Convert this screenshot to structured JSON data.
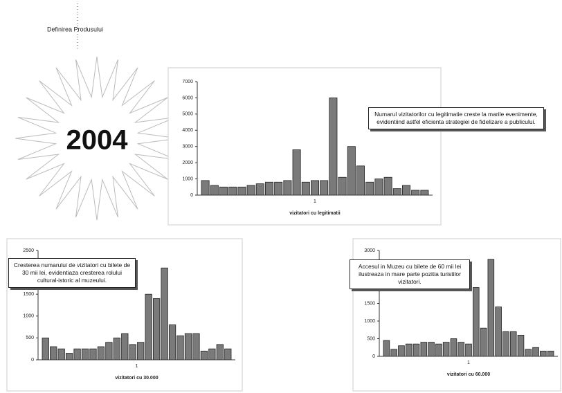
{
  "header": {
    "title": "Definirea Produsului",
    "year": "2004"
  },
  "chart_data": [
    {
      "type": "bar",
      "color": "#7a7a7a",
      "x_tick_label": "1",
      "xlabel": "vizitatori cu legitimatii",
      "annotation": "Numarul vizitatorilor cu legitimatie creste la marile evenimente, evidentiind astfel eficienta strategiei de fidelizare a publicului.",
      "ylim": [
        0,
        7000
      ],
      "yticks": [
        0,
        1000,
        2000,
        3000,
        4000,
        5000,
        6000,
        7000
      ],
      "values": [
        900,
        600,
        500,
        500,
        500,
        600,
        700,
        800,
        800,
        900,
        2800,
        800,
        900,
        900,
        6000,
        1100,
        3000,
        1800,
        800,
        1000,
        1100,
        400,
        600,
        300,
        300
      ]
    },
    {
      "type": "bar",
      "color": "#7a7a7a",
      "x_tick_label": "1",
      "xlabel": "vizitatori cu 30.000",
      "annotation": "Cresterea numarului de vizitatori cu bilete de 30 mii lei, evidentiaza cresterea rolului cultural-istoric al muzeului.",
      "ylim": [
        0,
        2500
      ],
      "yticks": [
        0,
        500,
        1000,
        1500,
        2000,
        2500
      ],
      "values": [
        500,
        300,
        250,
        150,
        250,
        250,
        250,
        300,
        400,
        500,
        600,
        350,
        400,
        1500,
        1400,
        2100,
        800,
        550,
        600,
        600,
        200,
        250,
        350,
        250
      ]
    },
    {
      "type": "bar",
      "color": "#7a7a7a",
      "x_tick_label": "1",
      "xlabel": "vizitatori cu 60.000",
      "annotation": "Accesul in Muzeu cu bilete de 60 mii lei ilustreaza in mare parte pozitia turistilor vizitatori.",
      "ylim": [
        0,
        3000
      ],
      "yticks": [
        0,
        500,
        1000,
        1500,
        2000,
        2500,
        3000
      ],
      "values": [
        450,
        200,
        300,
        350,
        350,
        400,
        400,
        350,
        400,
        500,
        400,
        350,
        1950,
        800,
        2750,
        1400,
        700,
        700,
        600,
        200,
        250,
        150,
        150
      ]
    }
  ]
}
